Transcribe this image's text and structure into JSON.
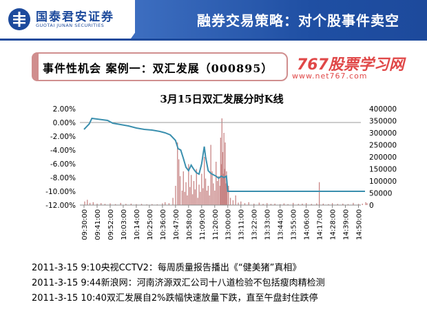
{
  "header": {
    "logo_cn": "国泰君安证券",
    "logo_en": "GUOTAI JUNAN SECURITIES",
    "title": "融券交易策略：对个股事件卖空"
  },
  "section": {
    "label": "事件性机会    案例一：双汇发展（000895）"
  },
  "watermark": {
    "brand": "767股票学习网",
    "url": "www.net767.com"
  },
  "colors": {
    "header_blue": "#1d4a9c",
    "price_line": "#3a8fae",
    "volume_bar": "#c88585",
    "baseline": "#999999"
  },
  "chart_data": {
    "type": "line",
    "title": "3月15日双汇发展分时K线",
    "y_left": {
      "ticks": [
        "2.00%",
        "0.00%",
        "-2.00%",
        "-4.00%",
        "-6.00%",
        "-8.00%",
        "-10.00%",
        "-12.00%"
      ],
      "range": [
        -12,
        2
      ]
    },
    "y_right": {
      "ticks": [
        "400000",
        "350000",
        "300000",
        "250000",
        "200000",
        "150000",
        "100000",
        "50000",
        "0"
      ],
      "range": [
        0,
        400000
      ]
    },
    "x_ticks": [
      "09:30:00",
      "09:41:00",
      "09:52:00",
      "10:03:00",
      "10:14:00",
      "10:25:00",
      "10:36:00",
      "10:47:00",
      "10:58:00",
      "11:09:00",
      "11:20:00",
      "13:00:00",
      "13:11:00",
      "13:22:00",
      "13:33:00",
      "13:44:00",
      "13:55:00",
      "14:06:00",
      "14:17:00",
      "14:28:00",
      "14:39:00",
      "14:50:00"
    ],
    "series": [
      {
        "type": "line",
        "axis": "left",
        "points": [
          [
            0,
            -1.0
          ],
          [
            0.4,
            -0.2
          ],
          [
            0.6,
            0.6
          ],
          [
            1.0,
            0.5
          ],
          [
            1.4,
            0.4
          ],
          [
            1.8,
            0.3
          ],
          [
            2.2,
            -0.1
          ],
          [
            2.8,
            -0.3
          ],
          [
            3.4,
            -0.5
          ],
          [
            4.0,
            -0.8
          ],
          [
            4.6,
            -1.0
          ],
          [
            5.2,
            -1.1
          ],
          [
            5.8,
            -1.3
          ],
          [
            6.2,
            -1.5
          ],
          [
            6.6,
            -1.8
          ],
          [
            7.0,
            -2.6
          ],
          [
            7.2,
            -3.8
          ],
          [
            7.4,
            -4.0
          ],
          [
            7.6,
            -5.2
          ],
          [
            7.8,
            -6.5
          ],
          [
            8.0,
            -7.0
          ],
          [
            8.2,
            -6.2
          ],
          [
            8.4,
            -6.8
          ],
          [
            8.6,
            -7.3
          ],
          [
            8.8,
            -7.5
          ],
          [
            9.0,
            -6.0
          ],
          [
            9.2,
            -3.5
          ],
          [
            9.3,
            -5.0
          ],
          [
            9.5,
            -7.0
          ],
          [
            9.7,
            -7.4
          ],
          [
            9.9,
            -7.6
          ],
          [
            10.1,
            -7.8
          ],
          [
            10.3,
            -8.1
          ],
          [
            10.5,
            -7.8
          ],
          [
            10.7,
            -8.0
          ],
          [
            10.9,
            -7.8
          ],
          [
            11.0,
            -10.0
          ],
          [
            21.5,
            -10.0
          ]
        ]
      },
      {
        "type": "bar",
        "axis": "right",
        "points": [
          [
            0.05,
            15000
          ],
          [
            0.25,
            22000
          ],
          [
            0.45,
            9000
          ],
          [
            0.7,
            12000
          ],
          [
            1.0,
            6000
          ],
          [
            1.3,
            8000
          ],
          [
            1.6,
            5000
          ],
          [
            2.0,
            7000
          ],
          [
            2.4,
            4000
          ],
          [
            2.8,
            9000
          ],
          [
            3.2,
            5000
          ],
          [
            3.6,
            6000
          ],
          [
            4.0,
            4000
          ],
          [
            4.4,
            5000
          ],
          [
            4.8,
            3000
          ],
          [
            5.2,
            4000
          ],
          [
            5.6,
            3000
          ],
          [
            6.0,
            7000
          ],
          [
            6.2,
            12000
          ],
          [
            6.5,
            8000
          ],
          [
            6.8,
            30000
          ],
          [
            7.0,
            80000
          ],
          [
            7.15,
            260000
          ],
          [
            7.25,
            190000
          ],
          [
            7.35,
            120000
          ],
          [
            7.5,
            60000
          ],
          [
            7.6,
            140000
          ],
          [
            7.7,
            55000
          ],
          [
            7.8,
            95000
          ],
          [
            7.9,
            40000
          ],
          [
            8.0,
            170000
          ],
          [
            8.1,
            75000
          ],
          [
            8.2,
            125000
          ],
          [
            8.3,
            45000
          ],
          [
            8.4,
            100000
          ],
          [
            8.5,
            65000
          ],
          [
            8.6,
            150000
          ],
          [
            8.7,
            30000
          ],
          [
            8.8,
            85000
          ],
          [
            8.9,
            55000
          ],
          [
            9.0,
            130000
          ],
          [
            9.1,
            70000
          ],
          [
            9.2,
            200000
          ],
          [
            9.3,
            110000
          ],
          [
            9.4,
            60000
          ],
          [
            9.5,
            80000
          ],
          [
            9.6,
            40000
          ],
          [
            9.7,
            250000
          ],
          [
            9.8,
            140000
          ],
          [
            9.9,
            90000
          ],
          [
            10.0,
            60000
          ],
          [
            10.1,
            180000
          ],
          [
            10.2,
            100000
          ],
          [
            10.3,
            120000
          ],
          [
            10.4,
            80000
          ],
          [
            10.45,
            280000
          ],
          [
            10.5,
            170000
          ],
          [
            10.55,
            360000
          ],
          [
            10.6,
            220000
          ],
          [
            10.65,
            130000
          ],
          [
            10.7,
            300000
          ],
          [
            10.75,
            150000
          ],
          [
            10.8,
            260000
          ],
          [
            10.85,
            90000
          ],
          [
            10.9,
            140000
          ],
          [
            10.95,
            60000
          ],
          [
            11.05,
            80000
          ],
          [
            11.2,
            30000
          ],
          [
            11.4,
            20000
          ],
          [
            11.6,
            40000
          ],
          [
            11.8,
            10000
          ],
          [
            12.0,
            15000
          ],
          [
            12.3,
            8000
          ],
          [
            12.6,
            12000
          ],
          [
            13.0,
            6000
          ],
          [
            13.4,
            10000
          ],
          [
            13.7,
            5000
          ],
          [
            14.0,
            8000
          ],
          [
            14.3,
            5000
          ],
          [
            14.6,
            6000
          ],
          [
            15.0,
            4000
          ],
          [
            15.3,
            7000
          ],
          [
            15.6,
            4000
          ],
          [
            16.0,
            9000
          ],
          [
            16.4,
            5000
          ],
          [
            16.7,
            6000
          ],
          [
            17.0,
            8000
          ],
          [
            17.4,
            5000
          ],
          [
            17.8,
            7000
          ],
          [
            18.0,
            95000
          ],
          [
            18.3,
            6000
          ],
          [
            18.7,
            4000
          ],
          [
            19.0,
            8000
          ],
          [
            19.4,
            5000
          ],
          [
            19.8,
            6000
          ],
          [
            20.2,
            4000
          ],
          [
            20.6,
            9000
          ],
          [
            21.0,
            5000
          ],
          [
            21.3,
            6000
          ],
          [
            21.55,
            12000
          ],
          [
            21.65,
            8000
          ]
        ]
      }
    ]
  },
  "notes": [
    "2011-3-15 9:10央视CCTV2：每周质量报告播出《“健美猪”真相》",
    "2011-3-15 9:44新浪网：河南济源双汇公司十八道检验不包括瘦肉精检测",
    "2011-3-15 10:40双汇发展自2%跌幅快速放量下跌，直至午盘封住跌停"
  ]
}
